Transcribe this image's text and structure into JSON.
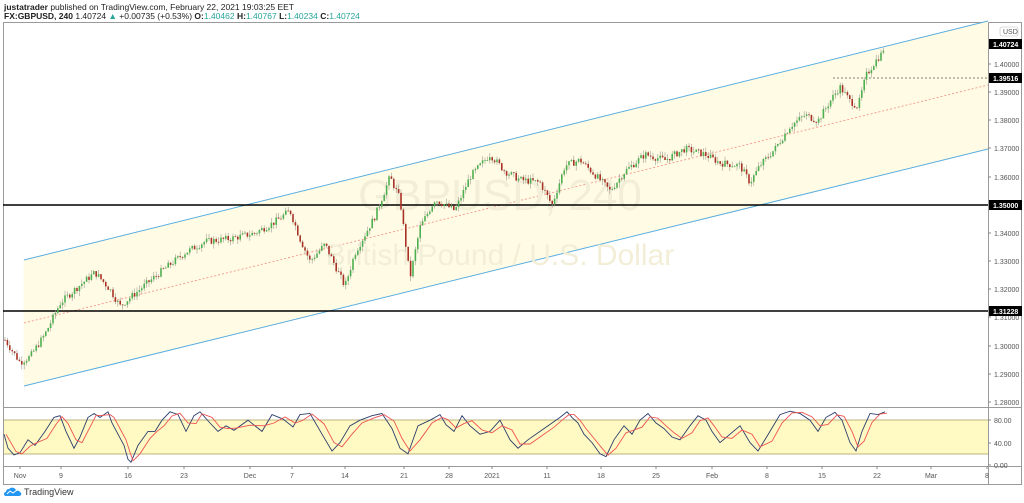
{
  "header": {
    "author": "justatrader",
    "published_text": "published on TradingView.com, February 22, 2021 19:03:25 EET",
    "symbol": "FX:GBPUSD, 240",
    "last": "1.40724",
    "change_arrow": "▲",
    "change": "+0.00735 (+0.53%)",
    "o_label": "O:",
    "o": "1.40462",
    "h_label": "H:",
    "h": "1.40767",
    "l_label": "L:",
    "l": "1.40234",
    "c_label": "C:",
    "c": "1.40724"
  },
  "watermark": {
    "symbol": "GBPUSD, 240",
    "description": "British Pound / U.S. Dollar"
  },
  "price_axis": {
    "currency": "USD",
    "ticks": [
      "1.40000",
      "1.39000",
      "1.38000",
      "1.37000",
      "1.36000",
      "1.34000",
      "1.33000",
      "1.32000",
      "1.31000",
      "1.30000",
      "1.29000",
      "1.28000"
    ],
    "tags": [
      {
        "value": "1.40724",
        "color": "#000000"
      },
      {
        "value": "1.39516",
        "color": "#000000"
      },
      {
        "value": "1.35000",
        "color": "#000000"
      },
      {
        "value": "1.31228",
        "color": "#000000"
      }
    ]
  },
  "osc_axis": {
    "ticks": [
      "80.00",
      "40.00",
      "0.00"
    ]
  },
  "time_axis": {
    "ticks": [
      "Nov",
      "9",
      "16",
      "23",
      "Dec",
      "7",
      "14",
      "21",
      "28",
      "2021",
      "11",
      "18",
      "25",
      "Feb",
      "8",
      "15",
      "22",
      "Mar",
      "8"
    ]
  },
  "footer": {
    "brand": "TradingView"
  },
  "colors": {
    "up": "#26a69a",
    "candle_up": "#4caf50",
    "candle_down": "#a93226",
    "channel_line": "#5aaee0",
    "channel_fill": "#fffbe5",
    "channel_mid": "#f28b82",
    "hline": "#000000",
    "osc_band": "#fff9c4",
    "osc_k": "#2c3e6b",
    "osc_d": "#ef5350"
  },
  "chart_data": {
    "type": "candlestick",
    "title": "FX:GBPUSD, 240",
    "xlabel": "",
    "ylabel": "USD",
    "ylim": [
      1.275,
      1.415
    ],
    "x": [
      "Nov",
      "9",
      "16",
      "23",
      "Dec",
      "7",
      "14",
      "21",
      "28",
      "2021",
      "11",
      "18",
      "25",
      "Feb",
      "8",
      "15",
      "22"
    ],
    "approx_close": [
      1.295,
      1.312,
      1.328,
      1.332,
      1.338,
      1.348,
      1.318,
      1.33,
      1.356,
      1.368,
      1.356,
      1.365,
      1.37,
      1.365,
      1.378,
      1.392,
      1.4072
    ],
    "horizontal_levels": [
      1.35,
      1.31228,
      1.39516
    ],
    "last_price": 1.40724,
    "regression_channel": {
      "upper": {
        "start": 1.33,
        "end": 1.415
      },
      "middle": {
        "start": 1.308,
        "end": 1.392
      },
      "lower": {
        "start": 1.285,
        "end": 1.37
      }
    },
    "oscillator": {
      "type": "stochastic",
      "ylim": [
        0,
        100
      ],
      "bands": [
        20,
        80
      ],
      "ticks": [
        80,
        40,
        0
      ]
    },
    "grid": false,
    "legend_position": "none"
  }
}
